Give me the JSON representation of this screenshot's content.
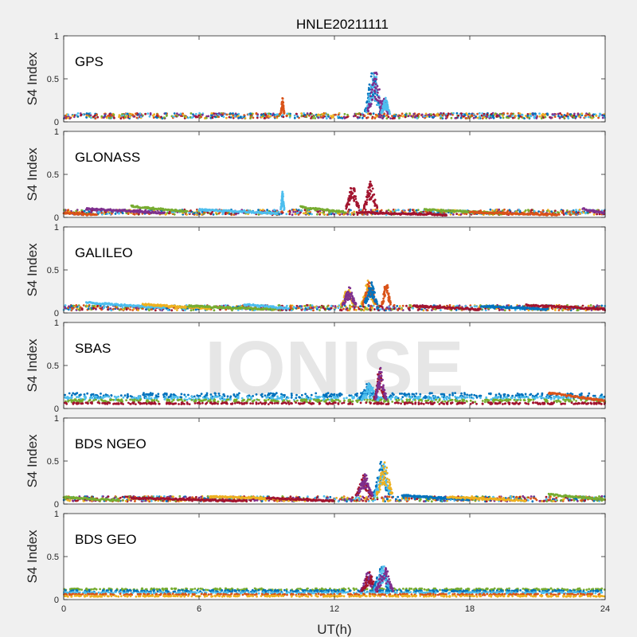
{
  "title": "HNLE20211111",
  "xlabel": "UT(h)",
  "watermark": "IONISE",
  "colors": [
    "#0072bd",
    "#d95319",
    "#edb120",
    "#7e2f8e",
    "#77ac30",
    "#4dbeee",
    "#a2142f"
  ],
  "chart_data": [
    {
      "type": "scatter",
      "panel": "GPS",
      "ylabel": "S4 Index",
      "xlim": [
        0,
        24
      ],
      "ylim": [
        0,
        1
      ],
      "xticks": [
        0,
        6,
        12,
        18,
        24
      ],
      "yticks": [
        0,
        0.5,
        1
      ],
      "baseline": 0.07,
      "events": [
        {
          "x": 13.7,
          "w": 0.35,
          "peak": 0.6,
          "colors": [
            0,
            5,
            3
          ]
        },
        {
          "x": 14.2,
          "w": 0.2,
          "peak": 0.28,
          "colors": [
            3,
            5
          ]
        },
        {
          "x": 9.7,
          "w": 0.08,
          "peak": 0.28,
          "colors": [
            1
          ]
        }
      ]
    },
    {
      "type": "scatter",
      "panel": "GLONASS",
      "ylabel": "S4 Index",
      "xlim": [
        0,
        24
      ],
      "ylim": [
        0,
        1
      ],
      "xticks": [
        0,
        6,
        12,
        18,
        24
      ],
      "yticks": [
        0,
        0.5,
        1
      ],
      "baseline": 0.06,
      "arcs": [
        {
          "x0": 0.0,
          "x1": 1.5,
          "y": 0.05,
          "c": 1
        },
        {
          "x0": 1.0,
          "x1": 4.5,
          "y": 0.1,
          "c": 3
        },
        {
          "x0": 3.0,
          "x1": 5.5,
          "y": 0.13,
          "c": 4
        },
        {
          "x0": 6.0,
          "x1": 9.5,
          "y": 0.09,
          "c": 5
        },
        {
          "x0": 10.5,
          "x1": 12.5,
          "y": 0.12,
          "c": 4
        },
        {
          "x0": 13.0,
          "x1": 17.0,
          "y": 0.06,
          "c": 6
        },
        {
          "x0": 16.0,
          "x1": 19.5,
          "y": 0.09,
          "c": 4
        },
        {
          "x0": 18.0,
          "x1": 22.0,
          "y": 0.06,
          "c": 1
        },
        {
          "x0": 23.0,
          "x1": 24.0,
          "y": 0.1,
          "c": 3
        }
      ],
      "events": [
        {
          "x": 12.8,
          "w": 0.3,
          "peak": 0.4,
          "colors": [
            6
          ]
        },
        {
          "x": 13.6,
          "w": 0.3,
          "peak": 0.42,
          "colors": [
            6
          ]
        },
        {
          "x": 9.7,
          "w": 0.08,
          "peak": 0.3,
          "colors": [
            5
          ]
        }
      ]
    },
    {
      "type": "scatter",
      "panel": "GALILEO",
      "ylabel": "S4 Index",
      "xlim": [
        0,
        24
      ],
      "ylim": [
        0,
        1
      ],
      "xticks": [
        0,
        6,
        12,
        18,
        24
      ],
      "yticks": [
        0,
        0.5,
        1
      ],
      "baseline": 0.06,
      "arcs": [
        {
          "x0": 1.0,
          "x1": 4.5,
          "y": 0.12,
          "c": 5
        },
        {
          "x0": 3.5,
          "x1": 6.5,
          "y": 0.1,
          "c": 2
        },
        {
          "x0": 5.5,
          "x1": 9.5,
          "y": 0.08,
          "c": 4
        },
        {
          "x0": 8.0,
          "x1": 10.0,
          "y": 0.1,
          "c": 5
        },
        {
          "x0": 15.5,
          "x1": 18.5,
          "y": 0.08,
          "c": 6
        },
        {
          "x0": 18.5,
          "x1": 21.5,
          "y": 0.08,
          "c": 0
        },
        {
          "x0": 20.5,
          "x1": 24.0,
          "y": 0.09,
          "c": 6
        }
      ],
      "events": [
        {
          "x": 12.6,
          "w": 0.3,
          "peak": 0.3,
          "colors": [
            2,
            3
          ]
        },
        {
          "x": 13.5,
          "w": 0.3,
          "peak": 0.38,
          "colors": [
            2,
            1,
            0
          ]
        },
        {
          "x": 14.3,
          "w": 0.2,
          "peak": 0.38,
          "colors": [
            1
          ]
        }
      ]
    },
    {
      "type": "scatter",
      "panel": "SBAS",
      "ylabel": "S4 Index",
      "xlim": [
        0,
        24
      ],
      "ylim": [
        0,
        1
      ],
      "xticks": [
        0,
        6,
        12,
        18,
        24
      ],
      "yticks": [
        0,
        0.5,
        1
      ],
      "bands": [
        {
          "y": 0.15,
          "c": 0,
          "spread": 0.03
        },
        {
          "y": 0.12,
          "c": 5,
          "spread": 0.02
        },
        {
          "y": 0.09,
          "c": 4,
          "spread": 0.015
        },
        {
          "y": 0.06,
          "c": 6,
          "spread": 0.01
        }
      ],
      "arcs": [
        {
          "x0": 21.5,
          "x1": 24.0,
          "y": 0.18,
          "c": 1
        }
      ],
      "events": [
        {
          "x": 13.5,
          "w": 0.4,
          "peak": 0.3,
          "colors": [
            0,
            5
          ]
        },
        {
          "x": 14.0,
          "w": 0.25,
          "peak": 0.48,
          "colors": [
            6,
            3
          ]
        }
      ]
    },
    {
      "type": "scatter",
      "panel": "BDS NGEO",
      "ylabel": "S4 Index",
      "xlim": [
        0,
        24
      ],
      "ylim": [
        0,
        1
      ],
      "xticks": [
        0,
        6,
        12,
        18,
        24
      ],
      "yticks": [
        0,
        0.5,
        1
      ],
      "baseline": 0.06,
      "arcs": [
        {
          "x0": 0.0,
          "x1": 2.5,
          "y": 0.08,
          "c": 4
        },
        {
          "x0": 3.0,
          "x1": 8.0,
          "y": 0.07,
          "c": 6
        },
        {
          "x0": 6.5,
          "x1": 10.5,
          "y": 0.09,
          "c": 2
        },
        {
          "x0": 9.0,
          "x1": 12.0,
          "y": 0.07,
          "c": 6
        },
        {
          "x0": 15.0,
          "x1": 18.0,
          "y": 0.1,
          "c": 0
        },
        {
          "x0": 17.0,
          "x1": 20.5,
          "y": 0.08,
          "c": 2
        },
        {
          "x0": 21.5,
          "x1": 24.0,
          "y": 0.11,
          "c": 4
        }
      ],
      "events": [
        {
          "x": 13.3,
          "w": 0.35,
          "peak": 0.35,
          "colors": [
            6,
            3
          ]
        },
        {
          "x": 14.1,
          "w": 0.35,
          "peak": 0.5,
          "colors": [
            0,
            5,
            2
          ]
        }
      ]
    },
    {
      "type": "scatter",
      "panel": "BDS GEO",
      "ylabel": "S4 Index",
      "xlim": [
        0,
        24
      ],
      "ylim": [
        0,
        1
      ],
      "xticks": [
        0,
        6,
        12,
        18,
        24
      ],
      "yticks": [
        0,
        0.5,
        1
      ],
      "bands": [
        {
          "y": 0.12,
          "c": 4,
          "spread": 0.01
        },
        {
          "y": 0.1,
          "c": 0,
          "spread": 0.01
        },
        {
          "y": 0.08,
          "c": 5,
          "spread": 0.008
        },
        {
          "y": 0.06,
          "c": 1,
          "spread": 0.008
        },
        {
          "y": 0.04,
          "c": 2,
          "spread": 0.006
        }
      ],
      "events": [
        {
          "x": 13.5,
          "w": 0.35,
          "peak": 0.32,
          "colors": [
            3,
            6
          ]
        },
        {
          "x": 14.1,
          "w": 0.4,
          "peak": 0.4,
          "colors": [
            0,
            5,
            3
          ]
        }
      ]
    }
  ]
}
